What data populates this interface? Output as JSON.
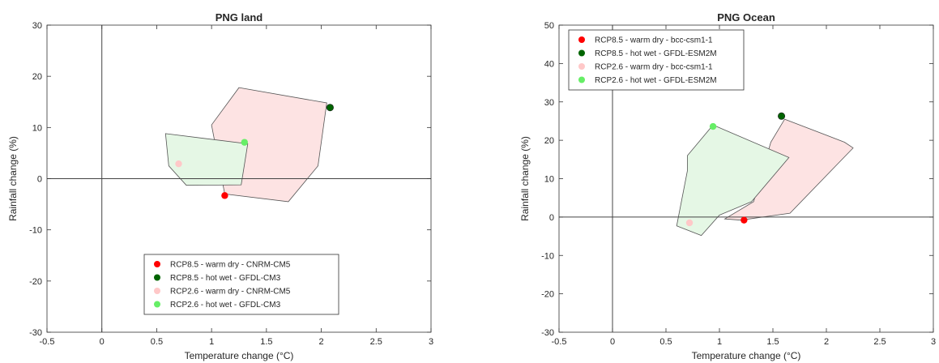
{
  "chart_data": [
    {
      "type": "scatter",
      "title": "PNG land",
      "xlabel": "Temperature change (°C)",
      "ylabel": "Rainfall change (%)",
      "xlim": [
        -0.5,
        3
      ],
      "ylim": [
        -30,
        30
      ],
      "xticks": [
        -0.5,
        0,
        0.5,
        1,
        1.5,
        2,
        2.5,
        3
      ],
      "yticks": [
        -30,
        -20,
        -10,
        0,
        10,
        20,
        30
      ],
      "xtick_labels": [
        "-0.5",
        "0",
        "0.5",
        "1",
        "1.5",
        "2",
        "2.5",
        "3"
      ],
      "ytick_labels": [
        "-30",
        "-20",
        "-10",
        "0",
        "10",
        "20",
        "30"
      ],
      "grid": false,
      "legend_position": "bottom-center",
      "regions": [
        {
          "fill": "#fde3e3",
          "points": [
            [
              1.25,
              17.8
            ],
            [
              2.05,
              14.8
            ],
            [
              1.97,
              2.5
            ],
            [
              1.7,
              -4.5
            ],
            [
              1.12,
              -3.0
            ],
            [
              1.0,
              10.5
            ]
          ]
        },
        {
          "fill": "#e5f7e5",
          "points": [
            [
              0.58,
              8.8
            ],
            [
              1.33,
              6.8
            ],
            [
              1.27,
              -1.2
            ],
            [
              0.77,
              -1.3
            ],
            [
              0.61,
              2.5
            ]
          ]
        }
      ],
      "series": [
        {
          "name": "RCP8.5 - warm dry - CNRM-CM5",
          "color": "#ff0000",
          "x": [
            1.12
          ],
          "y": [
            -3.3
          ]
        },
        {
          "name": "RCP8.5 - hot wet - GFDL-CM3",
          "color": "#006400",
          "x": [
            2.08
          ],
          "y": [
            13.9
          ]
        },
        {
          "name": "RCP2.6 - warm dry - CNRM-CM5",
          "color": "#ffc8c8",
          "x": [
            0.7
          ],
          "y": [
            2.9
          ]
        },
        {
          "name": "RCP2.6 - hot wet - GFDL-CM3",
          "color": "#66ee66",
          "x": [
            1.3
          ],
          "y": [
            7.1
          ]
        }
      ]
    },
    {
      "type": "scatter",
      "title": "PNG Ocean",
      "xlabel": "Temperature change (°C)",
      "ylabel": "Rainfall change (%)",
      "xlim": [
        -0.5,
        3
      ],
      "ylim": [
        -30,
        50
      ],
      "xticks": [
        -0.5,
        0,
        0.5,
        1,
        1.5,
        2,
        2.5,
        3
      ],
      "yticks": [
        -30,
        -20,
        -10,
        0,
        10,
        20,
        30,
        40,
        50
      ],
      "xtick_labels": [
        "-0.5",
        "0",
        "0.5",
        "1",
        "1.5",
        "2",
        "2.5",
        "3"
      ],
      "ytick_labels": [
        "-30",
        "-20",
        "-10",
        "0",
        "10",
        "20",
        "30",
        "40",
        "50"
      ],
      "grid": false,
      "legend_position": "top-left",
      "regions": [
        {
          "fill": "#fde3e3",
          "points": [
            [
              1.61,
              25.5
            ],
            [
              2.17,
              19.5
            ],
            [
              2.25,
              18.0
            ],
            [
              1.66,
              1.0
            ],
            [
              1.2,
              -0.8
            ],
            [
              1.05,
              -0.5
            ],
            [
              1.32,
              4.0
            ],
            [
              1.48,
              19.5
            ]
          ]
        },
        {
          "fill": "#e5f7e5",
          "points": [
            [
              0.94,
              24.0
            ],
            [
              1.65,
              15.5
            ],
            [
              1.3,
              4.0
            ],
            [
              1.0,
              0.5
            ],
            [
              0.83,
              -4.8
            ],
            [
              0.6,
              -2.3
            ],
            [
              0.7,
              12.0
            ],
            [
              0.7,
              16.0
            ]
          ]
        }
      ],
      "series": [
        {
          "name": "RCP8.5 - warm dry - bcc-csm1-1",
          "color": "#ff0000",
          "x": [
            1.23
          ],
          "y": [
            -0.8
          ]
        },
        {
          "name": "RCP8.5 - hot wet - GFDL-ESM2M",
          "color": "#006400",
          "x": [
            1.58
          ],
          "y": [
            26.3
          ]
        },
        {
          "name": "RCP2.6 - warm dry - bcc-csm1-1",
          "color": "#ffc8c8",
          "x": [
            0.72
          ],
          "y": [
            -1.5
          ]
        },
        {
          "name": "RCP2.6 - hot wet - GFDL-ESM2M",
          "color": "#66ee66",
          "x": [
            0.94
          ],
          "y": [
            23.6
          ]
        }
      ]
    }
  ]
}
